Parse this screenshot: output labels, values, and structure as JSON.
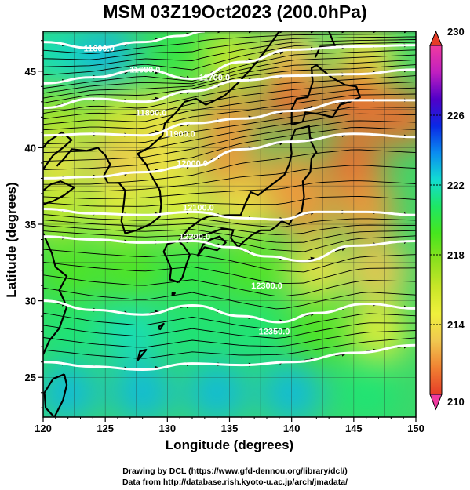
{
  "title": "MSM 03Z19Oct2023 (200.0hPa)",
  "x_axis_title": "Longitude (degrees)",
  "y_axis_title": "Latitude  (degrees)",
  "credits": [
    "Drawing by DCL (https://www.gfd-dennou.org/library/dcl/)",
    "Data from http://database.rish.kyoto-u.ac.jp/arch/jmadata/"
  ],
  "chart_data": {
    "type": "heatmap",
    "xlim": [
      120,
      150
    ],
    "ylim": [
      22.4,
      47.6
    ],
    "x_ticks": [
      120,
      125,
      130,
      135,
      140,
      145,
      150
    ],
    "y_ticks": [
      25,
      30,
      35,
      40,
      45
    ],
    "grid": true,
    "colorbar": {
      "min": 210,
      "max": 230,
      "tick_labels": [
        "230",
        "226",
        "222",
        "218",
        "214",
        "210"
      ],
      "tick_values": [
        230,
        226,
        222,
        218,
        214,
        210
      ],
      "colors": [
        "#f03aa0",
        "#c01fc0",
        "#5000c8",
        "#0a28e6",
        "#0a8cf0",
        "#12dcd2",
        "#1ee664",
        "#46e61e",
        "#8ce11e",
        "#c8e628",
        "#f0f03c",
        "#f0c850",
        "#f08232",
        "#e63c28"
      ]
    },
    "contour_labels": [
      {
        "text": "11600.0",
        "lon": 124.5,
        "lat": 46.3
      },
      {
        "text": "11600.0",
        "lon": 128.2,
        "lat": 44.9
      },
      {
        "text": "11700.0",
        "lon": 133.8,
        "lat": 44.4
      },
      {
        "text": "11800.0",
        "lon": 128.7,
        "lat": 42.1
      },
      {
        "text": "11900.0",
        "lon": 131.0,
        "lat": 40.7
      },
      {
        "text": "12000.0",
        "lon": 132.0,
        "lat": 38.8
      },
      {
        "text": "12100.0",
        "lon": 132.5,
        "lat": 35.9
      },
      {
        "text": "12200.0",
        "lon": 132.2,
        "lat": 34.0
      },
      {
        "text": "12300.0",
        "lon": 138.0,
        "lat": 30.8
      },
      {
        "text": "12350.0",
        "lon": 138.6,
        "lat": 27.8
      }
    ],
    "contours": [
      {
        "level": "11600",
        "points": [
          [
            120,
            46.9
          ],
          [
            124,
            46.5
          ],
          [
            128,
            46.9
          ],
          [
            131,
            47.3
          ],
          [
            133,
            47.6
          ]
        ]
      },
      {
        "level": "11700",
        "points": [
          [
            120,
            44.2
          ],
          [
            124,
            44.6
          ],
          [
            128,
            45.1
          ],
          [
            132,
            44.5
          ],
          [
            136,
            45.6
          ],
          [
            140,
            46.4
          ],
          [
            145,
            46.6
          ],
          [
            150,
            46.7
          ]
        ]
      },
      {
        "level": "11800",
        "points": [
          [
            120,
            42.6
          ],
          [
            124,
            43.2
          ],
          [
            128,
            43.0
          ],
          [
            132,
            43.7
          ],
          [
            136,
            44.4
          ],
          [
            140,
            44.7
          ],
          [
            145,
            44.8
          ],
          [
            150,
            45.1
          ]
        ]
      },
      {
        "level": "11900",
        "points": [
          [
            120,
            40.8
          ],
          [
            124,
            40.9
          ],
          [
            128,
            40.8
          ],
          [
            132,
            41.6
          ],
          [
            136,
            41.9
          ],
          [
            140,
            42.4
          ],
          [
            145,
            43.1
          ],
          [
            150,
            43.1
          ]
        ]
      },
      {
        "level": "12000",
        "points": [
          [
            120,
            38.0
          ],
          [
            124,
            38.1
          ],
          [
            128,
            38.4
          ],
          [
            132,
            38.8
          ],
          [
            136,
            39.9
          ],
          [
            140,
            40.4
          ],
          [
            145,
            40.9
          ],
          [
            150,
            40.7
          ]
        ]
      },
      {
        "level": "12100",
        "points": [
          [
            120,
            36.0
          ],
          [
            124,
            35.7
          ],
          [
            128,
            35.6
          ],
          [
            132,
            35.8
          ],
          [
            136,
            35.4
          ],
          [
            139,
            35.3
          ],
          [
            142,
            35.8
          ],
          [
            146,
            35.8
          ],
          [
            150,
            35.6
          ]
        ]
      },
      {
        "level": "12200",
        "points": [
          [
            120,
            34.2
          ],
          [
            124,
            34.0
          ],
          [
            128,
            33.8
          ],
          [
            132,
            33.9
          ],
          [
            135,
            33.5
          ],
          [
            138,
            32.9
          ],
          [
            141,
            32.6
          ],
          [
            145,
            33.6
          ],
          [
            150,
            33.9
          ]
        ]
      },
      {
        "level": "12300",
        "points": [
          [
            120,
            30.0
          ],
          [
            124,
            29.4
          ],
          [
            128,
            29.1
          ],
          [
            132,
            29.7
          ],
          [
            136,
            29.0
          ],
          [
            139,
            28.6
          ],
          [
            142,
            29.2
          ],
          [
            146,
            29.8
          ],
          [
            150,
            29.5
          ]
        ]
      },
      {
        "level": "12350",
        "points": [
          [
            120,
            26.0
          ],
          [
            124,
            25.7
          ],
          [
            128,
            25.5
          ],
          [
            132,
            25.9
          ],
          [
            136,
            25.8
          ],
          [
            140,
            26.0
          ],
          [
            145,
            26.6
          ],
          [
            150,
            27.1
          ]
        ]
      }
    ],
    "temperature_field": [
      {
        "lon": 121,
        "lat": 46,
        "value": 222
      },
      {
        "lon": 125,
        "lat": 46,
        "value": 223
      },
      {
        "lon": 131,
        "lat": 46,
        "value": 220
      },
      {
        "lon": 135,
        "lat": 46,
        "value": 216
      },
      {
        "lon": 140,
        "lat": 46,
        "value": 213
      },
      {
        "lon": 146,
        "lat": 46,
        "value": 214
      },
      {
        "lon": 121,
        "lat": 42,
        "value": 217
      },
      {
        "lon": 126,
        "lat": 42,
        "value": 216
      },
      {
        "lon": 130,
        "lat": 42,
        "value": 214
      },
      {
        "lon": 135,
        "lat": 42,
        "value": 212
      },
      {
        "lon": 140,
        "lat": 43,
        "value": 211
      },
      {
        "lon": 145,
        "lat": 43,
        "value": 211
      },
      {
        "lon": 149,
        "lat": 42,
        "value": 211
      },
      {
        "lon": 121,
        "lat": 39,
        "value": 214
      },
      {
        "lon": 126,
        "lat": 39,
        "value": 213
      },
      {
        "lon": 130,
        "lat": 39,
        "value": 214
      },
      {
        "lon": 135,
        "lat": 39,
        "value": 212
      },
      {
        "lon": 140,
        "lat": 38,
        "value": 212
      },
      {
        "lon": 145,
        "lat": 39,
        "value": 211
      },
      {
        "lon": 121,
        "lat": 36,
        "value": 216
      },
      {
        "lon": 126,
        "lat": 36,
        "value": 215
      },
      {
        "lon": 131,
        "lat": 36,
        "value": 215
      },
      {
        "lon": 136,
        "lat": 36,
        "value": 214
      },
      {
        "lon": 141,
        "lat": 36,
        "value": 212
      },
      {
        "lon": 146,
        "lat": 36,
        "value": 212
      },
      {
        "lon": 122,
        "lat": 32,
        "value": 219
      },
      {
        "lon": 127,
        "lat": 32,
        "value": 219
      },
      {
        "lon": 132,
        "lat": 32,
        "value": 220
      },
      {
        "lon": 137,
        "lat": 32,
        "value": 219
      },
      {
        "lon": 142,
        "lat": 32,
        "value": 214
      },
      {
        "lon": 147,
        "lat": 32,
        "value": 213
      },
      {
        "lon": 122,
        "lat": 28,
        "value": 221
      },
      {
        "lon": 127,
        "lat": 28,
        "value": 222
      },
      {
        "lon": 132,
        "lat": 28,
        "value": 221
      },
      {
        "lon": 137,
        "lat": 28,
        "value": 221
      },
      {
        "lon": 142,
        "lat": 28,
        "value": 219
      },
      {
        "lon": 147,
        "lat": 28,
        "value": 215
      },
      {
        "lon": 122,
        "lat": 24,
        "value": 223
      },
      {
        "lon": 128,
        "lat": 24,
        "value": 223
      },
      {
        "lon": 134,
        "lat": 24,
        "value": 223
      },
      {
        "lon": 140,
        "lat": 24,
        "value": 223
      },
      {
        "lon": 146,
        "lat": 24,
        "value": 221
      }
    ],
    "coastlines": [
      [
        [
          121.7,
          25.2
        ],
        [
          121.9,
          24.5
        ],
        [
          121.6,
          23.5
        ],
        [
          120.9,
          22.4
        ],
        [
          120.2,
          23.0
        ],
        [
          120.1,
          24.0
        ],
        [
          120.8,
          24.9
        ],
        [
          121.7,
          25.2
        ]
      ],
      [
        [
          120.0,
          26.5
        ],
        [
          120.5,
          27.4
        ],
        [
          121.3,
          28.2
        ],
        [
          121.9,
          29.6
        ],
        [
          121.3,
          30.7
        ],
        [
          121.9,
          31.6
        ],
        [
          121.0,
          32.2
        ],
        [
          120.7,
          33.1
        ],
        [
          120.0,
          34.4
        ]
      ],
      [
        [
          120.0,
          36.3
        ],
        [
          120.8,
          36.5
        ],
        [
          121.7,
          36.9
        ],
        [
          122.5,
          37.4
        ],
        [
          121.4,
          37.8
        ],
        [
          120.6,
          37.6
        ],
        [
          120.0,
          37.2
        ]
      ],
      [
        [
          120.0,
          38.6
        ],
        [
          120.8,
          39.5
        ],
        [
          121.6,
          40.0
        ],
        [
          122.3,
          40.5
        ],
        [
          121.5,
          41.0
        ],
        [
          120.4,
          40.4
        ],
        [
          120.0,
          40.0
        ]
      ],
      [
        [
          121.1,
          38.8
        ],
        [
          121.6,
          39.2
        ],
        [
          122.3,
          39.9
        ],
        [
          123.5,
          39.8
        ],
        [
          124.4,
          40.0
        ],
        [
          125.0,
          39.5
        ],
        [
          125.4,
          38.9
        ],
        [
          124.9,
          38.2
        ],
        [
          125.2,
          37.7
        ],
        [
          126.1,
          37.7
        ],
        [
          126.6,
          37.2
        ],
        [
          126.5,
          36.4
        ],
        [
          126.3,
          35.2
        ],
        [
          126.6,
          34.4
        ],
        [
          127.5,
          34.6
        ],
        [
          128.6,
          35.0
        ],
        [
          129.4,
          35.5
        ],
        [
          129.5,
          36.3
        ],
        [
          129.4,
          37.2
        ],
        [
          128.7,
          38.2
        ],
        [
          128.3,
          38.9
        ],
        [
          127.6,
          39.6
        ],
        [
          128.5,
          40.0
        ],
        [
          129.6,
          40.8
        ],
        [
          129.8,
          41.6
        ],
        [
          130.7,
          42.3
        ],
        [
          131.4,
          43.0
        ],
        [
          132.3,
          43.2
        ],
        [
          133.1,
          42.8
        ],
        [
          134.6,
          43.4
        ],
        [
          135.9,
          44.4
        ],
        [
          137.2,
          45.6
        ],
        [
          138.5,
          47.0
        ],
        [
          139.0,
          47.6
        ]
      ],
      [
        [
          130.9,
          31.2
        ],
        [
          130.2,
          31.4
        ],
        [
          130.3,
          32.1
        ],
        [
          130.0,
          32.7
        ],
        [
          129.7,
          33.2
        ],
        [
          130.0,
          33.7
        ],
        [
          130.9,
          33.9
        ],
        [
          131.3,
          33.6
        ],
        [
          131.8,
          33.0
        ],
        [
          131.5,
          32.3
        ],
        [
          131.2,
          31.5
        ],
        [
          130.9,
          31.2
        ]
      ],
      [
        [
          132.4,
          32.9
        ],
        [
          133.0,
          33.5
        ],
        [
          134.0,
          33.3
        ],
        [
          134.7,
          33.8
        ],
        [
          134.2,
          34.2
        ],
        [
          133.5,
          34.0
        ],
        [
          132.9,
          33.7
        ],
        [
          132.4,
          32.9
        ]
      ],
      [
        [
          130.9,
          33.9
        ],
        [
          131.8,
          34.0
        ],
        [
          132.6,
          34.2
        ],
        [
          133.4,
          34.4
        ],
        [
          134.4,
          34.7
        ],
        [
          135.3,
          34.6
        ],
        [
          135.1,
          34.1
        ],
        [
          135.7,
          33.5
        ],
        [
          136.2,
          33.9
        ],
        [
          136.8,
          34.3
        ],
        [
          137.5,
          34.6
        ],
        [
          138.3,
          34.6
        ],
        [
          138.8,
          34.9
        ],
        [
          139.2,
          35.2
        ],
        [
          139.8,
          35.0
        ],
        [
          140.1,
          35.4
        ],
        [
          140.8,
          35.8
        ],
        [
          141.0,
          36.8
        ],
        [
          140.9,
          37.8
        ],
        [
          141.5,
          38.4
        ],
        [
          141.6,
          39.3
        ],
        [
          142.0,
          39.7
        ],
        [
          141.5,
          40.5
        ],
        [
          141.4,
          41.4
        ],
        [
          140.3,
          41.2
        ],
        [
          139.9,
          40.4
        ],
        [
          140.0,
          39.6
        ],
        [
          139.8,
          38.9
        ],
        [
          139.4,
          38.2
        ],
        [
          138.6,
          37.7
        ],
        [
          137.3,
          36.9
        ],
        [
          136.7,
          37.1
        ],
        [
          136.2,
          36.2
        ],
        [
          135.9,
          35.6
        ],
        [
          134.9,
          35.6
        ],
        [
          133.3,
          35.5
        ],
        [
          132.7,
          35.3
        ],
        [
          131.7,
          34.7
        ],
        [
          130.9,
          33.9
        ]
      ],
      [
        [
          140.0,
          41.5
        ],
        [
          140.9,
          41.7
        ],
        [
          141.1,
          42.3
        ],
        [
          142.2,
          42.2
        ],
        [
          143.3,
          42.0
        ],
        [
          143.9,
          42.8
        ],
        [
          144.7,
          43.0
        ],
        [
          145.5,
          43.3
        ],
        [
          145.2,
          44.0
        ],
        [
          144.3,
          44.1
        ],
        [
          143.2,
          44.6
        ],
        [
          142.0,
          45.4
        ],
        [
          141.6,
          45.2
        ],
        [
          141.7,
          44.3
        ],
        [
          141.3,
          43.3
        ],
        [
          140.4,
          43.2
        ],
        [
          140.0,
          42.5
        ],
        [
          140.0,
          41.5
        ]
      ],
      [
        [
          141.9,
          45.9
        ],
        [
          142.3,
          46.6
        ],
        [
          143.5,
          46.6
        ],
        [
          143.0,
          47.6
        ]
      ],
      [
        [
          127.6,
          26.1
        ],
        [
          128.3,
          26.8
        ],
        [
          127.8,
          26.7
        ],
        [
          127.6,
          26.1
        ]
      ],
      [
        [
          129.4,
          28.1
        ],
        [
          129.7,
          28.5
        ],
        [
          129.3,
          28.3
        ],
        [
          129.4,
          28.1
        ]
      ],
      [
        [
          130.4,
          30.3
        ],
        [
          130.6,
          30.5
        ],
        [
          130.4,
          30.5
        ],
        [
          130.4,
          30.3
        ]
      ]
    ]
  }
}
